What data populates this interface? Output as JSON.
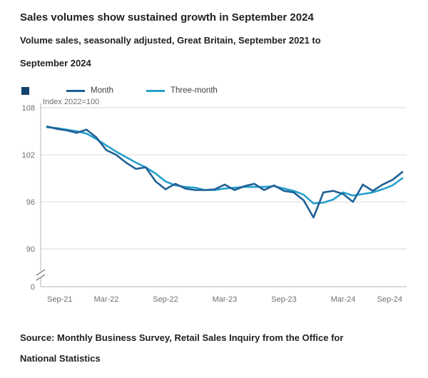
{
  "page": {
    "title": "Sales volumes show sustained growth in September 2024",
    "subtitle": "Volume sales, seasonally adjusted, Great Britain, September 2021 to September 2024",
    "source": "Source: Monthly Business Survey, Retail Sales Inquiry from the Office for National Statistics"
  },
  "colors": {
    "month_line": "#206095",
    "three_month_line": "#27A0CC",
    "gridline": "#d9d9d9",
    "axis": "#b3b3b3",
    "tick_text": "#707071",
    "accent_square": "#12436D"
  },
  "chart_data": {
    "type": "line",
    "title": "Sales volumes show sustained growth in September 2024",
    "subtitle": "Volume sales, seasonally adjusted, Great Britain, September 2021 to September 2024",
    "unit_label": "Index 2022=100",
    "grid": true,
    "legend_position": "top",
    "axis_break": true,
    "ylim": [
      88,
      108
    ],
    "y_ticks": [
      108,
      102,
      96,
      90
    ],
    "y_baseline_label": "0",
    "x_tick_labels": [
      "Sep-21",
      "Mar-22",
      "Sep-22",
      "Mar-23",
      "Sep-23",
      "Mar-24",
      "Sep-24"
    ],
    "x_tick_indices": [
      0,
      6,
      12,
      18,
      24,
      30,
      36
    ],
    "x": [
      "Sep-21",
      "Oct-21",
      "Nov-21",
      "Dec-21",
      "Jan-22",
      "Feb-22",
      "Mar-22",
      "Apr-22",
      "May-22",
      "Jun-22",
      "Jul-22",
      "Aug-22",
      "Sep-22",
      "Oct-22",
      "Nov-22",
      "Dec-22",
      "Jan-23",
      "Feb-23",
      "Mar-23",
      "Apr-23",
      "May-23",
      "Jun-23",
      "Jul-23",
      "Aug-23",
      "Sep-23",
      "Oct-23",
      "Nov-23",
      "Dec-23",
      "Jan-24",
      "Feb-24",
      "Mar-24",
      "Apr-24",
      "May-24",
      "Jun-24",
      "Jul-24",
      "Aug-24",
      "Sep-24"
    ],
    "series": [
      {
        "name": "Month",
        "color": "#206095",
        "values": [
          105.6,
          105.3,
          105.1,
          104.8,
          105.2,
          104.2,
          102.6,
          102.0,
          101.0,
          100.2,
          100.4,
          98.6,
          97.6,
          98.3,
          97.7,
          97.5,
          97.5,
          97.6,
          98.2,
          97.5,
          98.0,
          98.3,
          97.5,
          98.1,
          97.4,
          97.2,
          96.2,
          94.0,
          97.2,
          97.4,
          97.0,
          96.0,
          98.2,
          97.4,
          98.2,
          98.8,
          99.8
        ]
      },
      {
        "name": "Three-month",
        "color": "#27A0CC",
        "values": [
          105.5,
          105.4,
          105.2,
          105.0,
          104.7,
          104.0,
          103.2,
          102.4,
          101.7,
          101.0,
          100.4,
          99.6,
          98.6,
          98.1,
          97.9,
          97.8,
          97.5,
          97.5,
          97.7,
          97.8,
          97.9,
          97.9,
          97.9,
          98.0,
          97.7,
          97.4,
          96.9,
          95.8,
          95.9,
          96.3,
          97.2,
          96.8,
          97.0,
          97.2,
          97.6,
          98.1,
          99.0
        ]
      }
    ]
  }
}
